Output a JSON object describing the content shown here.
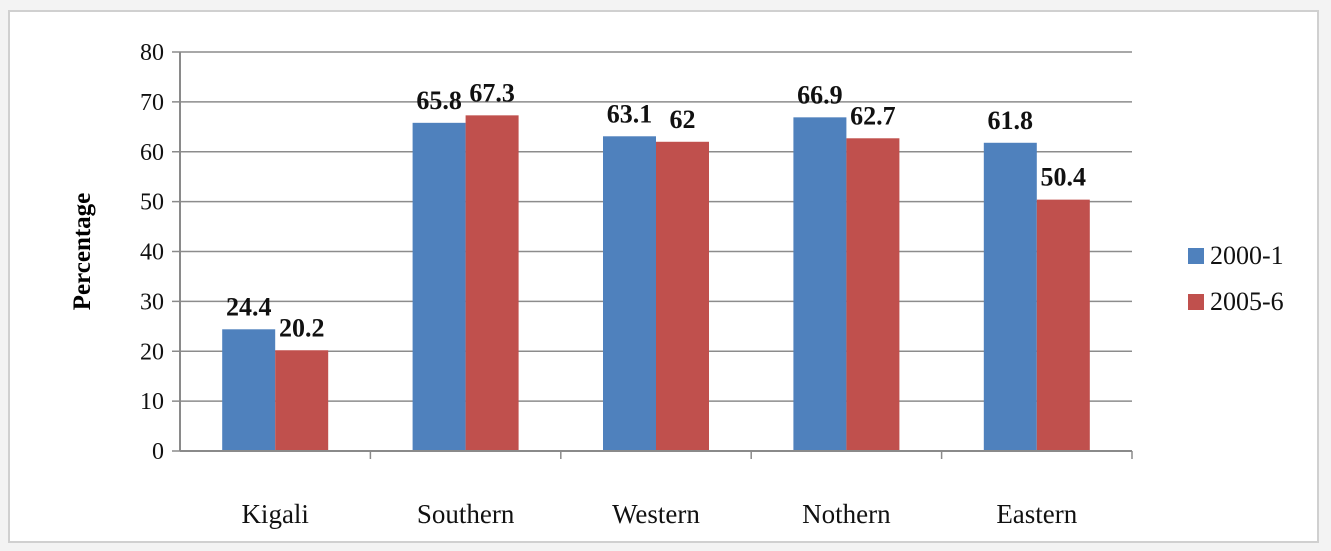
{
  "chart_data": {
    "type": "bar",
    "title": "",
    "xlabel": "",
    "ylabel": "Percentage",
    "ylim": [
      0,
      80
    ],
    "yticks": [
      0,
      10,
      20,
      30,
      40,
      50,
      60,
      70,
      80
    ],
    "categories": [
      "Kigali",
      "Southern",
      "Western",
      "Nothern",
      "Eastern"
    ],
    "series": [
      {
        "name": "2000-1",
        "color": "#4f81bd",
        "values": [
          24.4,
          65.8,
          63.1,
          66.9,
          61.8
        ],
        "labels": [
          "24.4",
          "65.8",
          "63.1",
          "66.9",
          "61.8"
        ]
      },
      {
        "name": "2005-6",
        "color": "#c0504d",
        "values": [
          20.2,
          67.3,
          62,
          62.7,
          50.4
        ],
        "labels": [
          "20.2",
          "67.3",
          "62",
          "62.7",
          "50.4"
        ]
      }
    ],
    "grid": true,
    "legend": "right"
  }
}
